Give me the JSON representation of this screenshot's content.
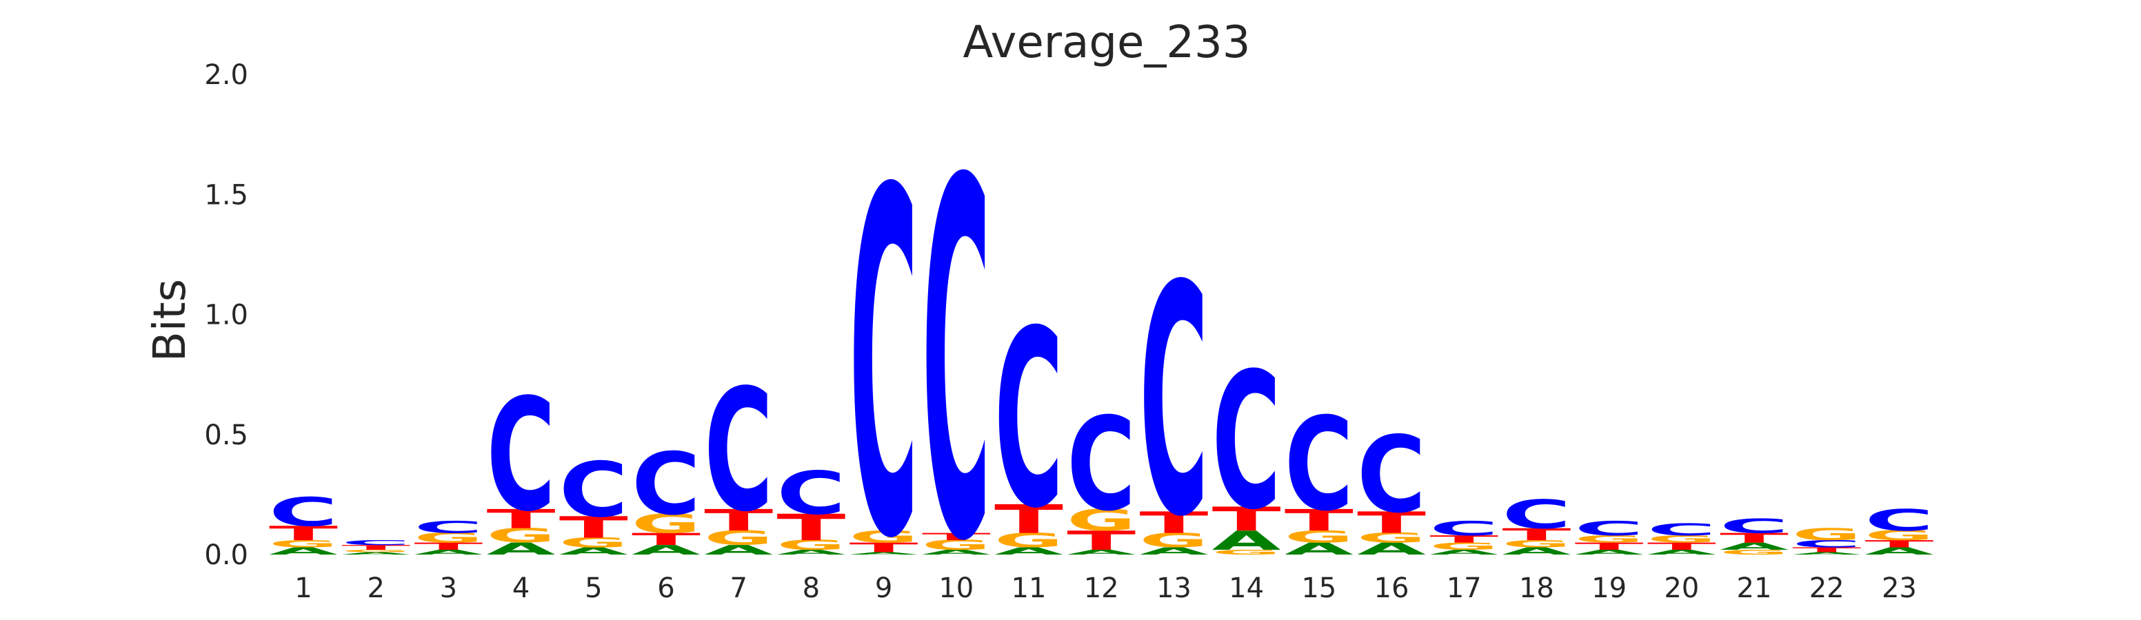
{
  "chart_data": {
    "type": "sequence-logo",
    "title": "Average_233",
    "ylabel": "Bits",
    "xlabel": "",
    "ylim": [
      0,
      2.0
    ],
    "yticks": [
      "0.0",
      "0.5",
      "1.0",
      "1.5",
      "2.0"
    ],
    "grid": false,
    "legend": "none",
    "colors": {
      "A": "#008000",
      "C": "#0000ff",
      "G": "#ffa500",
      "T": "#ff0000"
    },
    "positions": [
      {
        "label": "1",
        "stack": [
          [
            "A",
            0.03
          ],
          [
            "G",
            0.03
          ],
          [
            "T",
            0.06
          ],
          [
            "C",
            0.12
          ]
        ]
      },
      {
        "label": "2",
        "stack": [
          [
            "A",
            0.01
          ],
          [
            "G",
            0.01
          ],
          [
            "T",
            0.02
          ],
          [
            "C",
            0.02
          ]
        ]
      },
      {
        "label": "3",
        "stack": [
          [
            "A",
            0.02
          ],
          [
            "T",
            0.03
          ],
          [
            "G",
            0.04
          ],
          [
            "C",
            0.05
          ]
        ]
      },
      {
        "label": "4",
        "stack": [
          [
            "A",
            0.05
          ],
          [
            "G",
            0.06
          ],
          [
            "T",
            0.08
          ],
          [
            "C",
            0.47
          ]
        ]
      },
      {
        "label": "5",
        "stack": [
          [
            "A",
            0.03
          ],
          [
            "G",
            0.04
          ],
          [
            "T",
            0.09
          ],
          [
            "C",
            0.23
          ]
        ]
      },
      {
        "label": "6",
        "stack": [
          [
            "A",
            0.04
          ],
          [
            "T",
            0.05
          ],
          [
            "G",
            0.08
          ],
          [
            "C",
            0.26
          ]
        ]
      },
      {
        "label": "7",
        "stack": [
          [
            "A",
            0.04
          ],
          [
            "G",
            0.06
          ],
          [
            "T",
            0.09
          ],
          [
            "C",
            0.51
          ]
        ]
      },
      {
        "label": "8",
        "stack": [
          [
            "A",
            0.02
          ],
          [
            "G",
            0.04
          ],
          [
            "T",
            0.11
          ],
          [
            "C",
            0.18
          ]
        ]
      },
      {
        "label": "9",
        "stack": [
          [
            "A",
            0.01
          ],
          [
            "T",
            0.04
          ],
          [
            "G",
            0.05
          ],
          [
            "C",
            1.44
          ]
        ]
      },
      {
        "label": "10",
        "stack": [
          [
            "A",
            0.02
          ],
          [
            "G",
            0.04
          ],
          [
            "T",
            0.03
          ],
          [
            "C",
            1.49
          ]
        ]
      },
      {
        "label": "11",
        "stack": [
          [
            "A",
            0.03
          ],
          [
            "G",
            0.06
          ],
          [
            "T",
            0.12
          ],
          [
            "C",
            0.74
          ]
        ]
      },
      {
        "label": "12",
        "stack": [
          [
            "A",
            0.02
          ],
          [
            "T",
            0.08
          ],
          [
            "G",
            0.09
          ],
          [
            "C",
            0.39
          ]
        ]
      },
      {
        "label": "13",
        "stack": [
          [
            "A",
            0.03
          ],
          [
            "G",
            0.06
          ],
          [
            "T",
            0.09
          ],
          [
            "C",
            0.96
          ]
        ]
      },
      {
        "label": "14",
        "stack": [
          [
            "G",
            0.02
          ],
          [
            "A",
            0.08
          ],
          [
            "T",
            0.1
          ],
          [
            "C",
            0.57
          ]
        ]
      },
      {
        "label": "15",
        "stack": [
          [
            "A",
            0.05
          ],
          [
            "G",
            0.05
          ],
          [
            "T",
            0.09
          ],
          [
            "C",
            0.39
          ]
        ]
      },
      {
        "label": "16",
        "stack": [
          [
            "A",
            0.05
          ],
          [
            "G",
            0.04
          ],
          [
            "T",
            0.09
          ],
          [
            "C",
            0.32
          ]
        ]
      },
      {
        "label": "17",
        "stack": [
          [
            "A",
            0.02
          ],
          [
            "G",
            0.03
          ],
          [
            "T",
            0.03
          ],
          [
            "C",
            0.06
          ]
        ]
      },
      {
        "label": "18",
        "stack": [
          [
            "A",
            0.03
          ],
          [
            "G",
            0.03
          ],
          [
            "T",
            0.05
          ],
          [
            "C",
            0.12
          ]
        ]
      },
      {
        "label": "19",
        "stack": [
          [
            "A",
            0.02
          ],
          [
            "T",
            0.03
          ],
          [
            "G",
            0.03
          ],
          [
            "C",
            0.06
          ]
        ]
      },
      {
        "label": "20",
        "stack": [
          [
            "A",
            0.02
          ],
          [
            "T",
            0.03
          ],
          [
            "G",
            0.03
          ],
          [
            "C",
            0.05
          ]
        ]
      },
      {
        "label": "21",
        "stack": [
          [
            "G",
            0.02
          ],
          [
            "A",
            0.03
          ],
          [
            "T",
            0.04
          ],
          [
            "C",
            0.06
          ]
        ]
      },
      {
        "label": "22",
        "stack": [
          [
            "A",
            0.01
          ],
          [
            "T",
            0.02
          ],
          [
            "C",
            0.03
          ],
          [
            "G",
            0.05
          ]
        ]
      },
      {
        "label": "23",
        "stack": [
          [
            "A",
            0.03
          ],
          [
            "T",
            0.03
          ],
          [
            "G",
            0.04
          ],
          [
            "C",
            0.09
          ]
        ]
      }
    ]
  }
}
